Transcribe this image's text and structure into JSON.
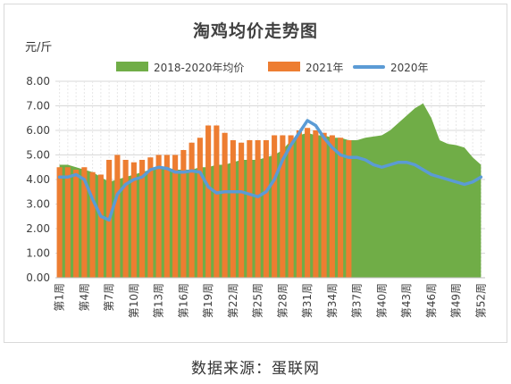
{
  "chart_data": {
    "type": "bar",
    "title": "淘鸡均价走势图",
    "unit_label": "元/斤",
    "ylim": [
      0,
      8
    ],
    "y_ticks": [
      "0.00",
      "1.00",
      "2.00",
      "3.00",
      "4.00",
      "5.00",
      "6.00",
      "7.00",
      "8.00"
    ],
    "x_labels": [
      "第1周",
      "第4周",
      "第7周",
      "第10周",
      "第13周",
      "第16周",
      "第19周",
      "第22周",
      "第25周",
      "第28周",
      "第31周",
      "第34周",
      "第37周",
      "第40周",
      "第43周",
      "第46周",
      "第49周",
      "第52周"
    ],
    "grid": true,
    "legend_position": "top",
    "weeks": [
      1,
      2,
      3,
      4,
      5,
      6,
      7,
      8,
      9,
      10,
      11,
      12,
      13,
      14,
      15,
      16,
      17,
      18,
      19,
      20,
      21,
      22,
      23,
      24,
      25,
      26,
      27,
      28,
      29,
      30,
      31,
      32,
      33,
      34,
      35,
      36,
      37,
      38,
      39,
      40,
      41,
      42,
      43,
      44,
      45,
      46,
      47,
      48,
      49,
      50,
      51,
      52
    ],
    "series": [
      {
        "name": "2018-2020年均价",
        "type": "area",
        "color": "#70ad47",
        "values": [
          4.6,
          4.6,
          4.5,
          4.4,
          4.3,
          4.1,
          3.9,
          4.0,
          4.1,
          4.2,
          4.3,
          4.4,
          4.5,
          4.5,
          4.4,
          4.4,
          4.4,
          4.5,
          4.5,
          4.6,
          4.6,
          4.7,
          4.8,
          4.8,
          4.8,
          4.9,
          5.0,
          5.2,
          5.6,
          5.8,
          5.9,
          5.8,
          5.8,
          5.7,
          5.7,
          5.6,
          5.6,
          5.7,
          5.75,
          5.8,
          6.0,
          6.3,
          6.6,
          6.9,
          7.1,
          6.5,
          5.6,
          5.45,
          5.4,
          5.3,
          4.9,
          4.6
        ]
      },
      {
        "name": "2021年",
        "type": "bar",
        "color": "#ed7d31",
        "values": [
          4.5,
          4.5,
          4.4,
          4.5,
          4.3,
          4.2,
          4.8,
          5.0,
          4.8,
          4.7,
          4.8,
          4.9,
          5.0,
          5.0,
          5.0,
          5.2,
          5.5,
          5.7,
          6.2,
          6.2,
          5.9,
          5.6,
          5.5,
          5.6,
          5.6,
          5.6,
          5.8,
          5.8,
          5.8,
          6.0,
          6.1,
          6.0,
          5.9,
          5.8,
          5.7,
          5.6
        ]
      },
      {
        "name": "2020年",
        "type": "line",
        "color": "#5b9bd5",
        "values": [
          4.1,
          4.1,
          4.2,
          4.0,
          3.2,
          2.5,
          2.35,
          3.4,
          3.8,
          4.0,
          4.1,
          4.4,
          4.5,
          4.45,
          4.3,
          4.3,
          4.35,
          4.3,
          3.7,
          3.45,
          3.5,
          3.5,
          3.5,
          3.4,
          3.3,
          3.5,
          4.0,
          4.8,
          5.4,
          5.9,
          6.4,
          6.2,
          5.7,
          5.3,
          5.0,
          4.9,
          4.9,
          4.8,
          4.6,
          4.5,
          4.6,
          4.7,
          4.7,
          4.6,
          4.4,
          4.2,
          4.1,
          4.0,
          3.9,
          3.8,
          3.9,
          4.1
        ]
      }
    ]
  },
  "footer": {
    "source": "数据来源：蛋联网"
  }
}
